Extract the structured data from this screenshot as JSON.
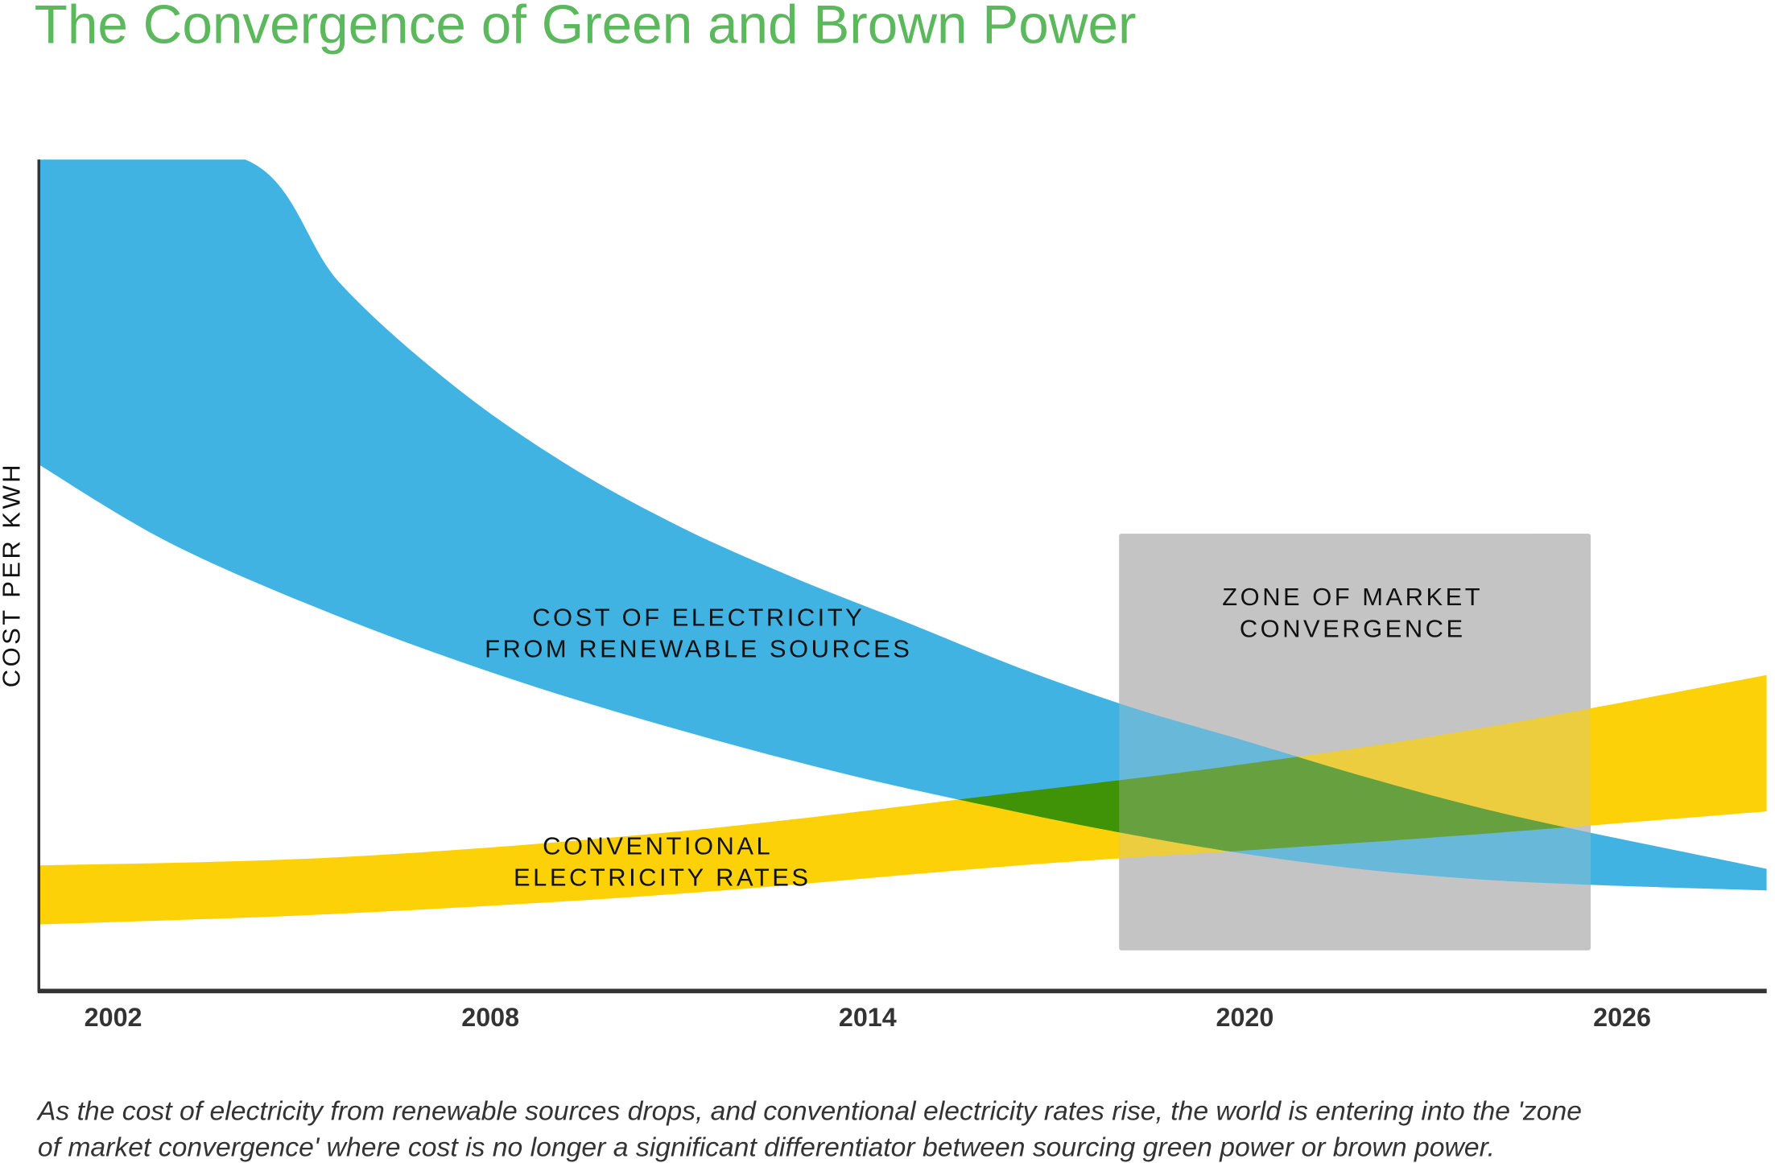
{
  "chart_data": {
    "type": "area",
    "title": "The Convergence of Green and Brown Power",
    "xlabel": "",
    "ylabel": "COST PER KWH",
    "xlim": [
      2000.8,
      2028.3
    ],
    "ylim": [
      0,
      100
    ],
    "x_ticks": [
      "2002",
      "2008",
      "2014",
      "2020",
      "2026"
    ],
    "grid": false,
    "series": [
      {
        "name": "COST OF ELECTRICITY FROM RENEWABLE SOURCES",
        "label_lines": [
          "COST OF ELECTRICITY",
          "FROM RENEWABLE SOURCES"
        ],
        "color": "#41b3e3",
        "upper": [
          [
            2000.8,
            100
          ],
          [
            2004.1,
            100
          ],
          [
            2005.6,
            85.2
          ],
          [
            2007.4,
            72.9
          ],
          [
            2009.2,
            63.4
          ],
          [
            2011.0,
            55.9
          ],
          [
            2012.8,
            49.8
          ],
          [
            2014.6,
            44.4
          ],
          [
            2016.4,
            38.9
          ],
          [
            2018.2,
            34.1
          ],
          [
            2020.0,
            30.1
          ],
          [
            2021.8,
            26.0
          ],
          [
            2023.6,
            22.3
          ],
          [
            2025.4,
            19.2
          ],
          [
            2028.3,
            14.7
          ]
        ],
        "lower": [
          [
            2000.8,
            63.4
          ],
          [
            2002.9,
            53.9
          ],
          [
            2005.6,
            45.0
          ],
          [
            2008.3,
            37.6
          ],
          [
            2011.0,
            31.4
          ],
          [
            2013.7,
            26.0
          ],
          [
            2016.4,
            21.5
          ],
          [
            2018.2,
            18.8
          ],
          [
            2020.0,
            16.5
          ],
          [
            2021.8,
            14.7
          ],
          [
            2023.6,
            13.5
          ],
          [
            2025.4,
            12.8
          ],
          [
            2028.3,
            12.1
          ]
        ]
      },
      {
        "name": "CONVENTIONAL ELECTRICITY RATES",
        "label_lines": [
          "CONVENTIONAL",
          "ELECTRICITY RATES"
        ],
        "color": "#fcd107",
        "upper": [
          [
            2000.8,
            15.1
          ],
          [
            2005.6,
            16.1
          ],
          [
            2011.0,
            19.2
          ],
          [
            2016.4,
            23.9
          ],
          [
            2020.0,
            27.3
          ],
          [
            2023.6,
            31.4
          ],
          [
            2028.3,
            38.0
          ]
        ],
        "lower": [
          [
            2000.8,
            8.0
          ],
          [
            2005.6,
            9.3
          ],
          [
            2011.0,
            11.7
          ],
          [
            2016.4,
            15.1
          ],
          [
            2020.0,
            16.9
          ],
          [
            2023.6,
            18.8
          ],
          [
            2028.3,
            21.6
          ]
        ]
      }
    ],
    "annotations": [
      {
        "name": "ZONE OF MARKET CONVERGENCE",
        "label_lines": [
          "ZONE OF MARKET",
          "CONVERGENCE"
        ],
        "x_range": [
          2018.0,
          2025.5
        ],
        "y_range": [
          4.9,
          55.0
        ],
        "color": "#c4c4c4"
      }
    ],
    "caption_lines": [
      "As the cost of  electricity from renewable sources drops, and conventional electricity rates rise, the world is entering into the 'zone",
      "of  market convergence' where cost is no longer a significant differentiator between sourcing green power or brown power."
    ]
  }
}
